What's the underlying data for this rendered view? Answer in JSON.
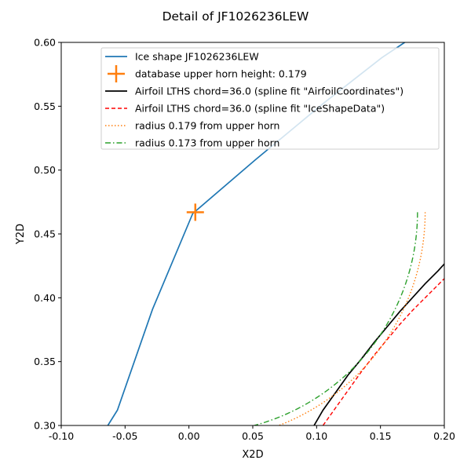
{
  "chart_data": {
    "type": "line",
    "title": "Detail of JF1026236LEW",
    "xlabel": "X2D",
    "ylabel": "Y2D",
    "xlim": [
      -0.1,
      0.2
    ],
    "ylim": [
      0.3,
      0.6
    ],
    "x_ticks": [
      "-0.10",
      "-0.05",
      "0.00",
      "0.05",
      "0.10",
      "0.15",
      "0.20"
    ],
    "y_ticks": [
      "0.30",
      "0.35",
      "0.40",
      "0.45",
      "0.50",
      "0.55",
      "0.60"
    ],
    "grid": false,
    "legend_position": "upper-right",
    "series": [
      {
        "name": "Ice shape JF1026236LEW",
        "style": "solid",
        "color": "#1f77b4",
        "x": [
          -0.0635,
          -0.056,
          -0.0285,
          0.003,
          0.052,
          0.105,
          0.151,
          0.172
        ],
        "y": [
          0.3,
          0.312,
          0.391,
          0.466,
          0.508,
          0.552,
          0.588,
          0.602
        ]
      },
      {
        "name": "database upper horn height: 0.179",
        "style": "marker",
        "marker": "plus",
        "color": "#ff7f0e",
        "x": [
          0.005
        ],
        "y": [
          0.467
        ]
      },
      {
        "name": "Airfoil LTHS chord=36.0 (spline fit \"AirfoilCoordinates\")",
        "style": "solid",
        "color": "#000000",
        "x": [
          0.098,
          0.105,
          0.115,
          0.125,
          0.135,
          0.145,
          0.155,
          0.165,
          0.175,
          0.185,
          0.195,
          0.205
        ],
        "y": [
          0.3,
          0.312,
          0.326,
          0.34,
          0.352,
          0.365,
          0.377,
          0.389,
          0.4,
          0.411,
          0.421,
          0.432
        ]
      },
      {
        "name": "Airfoil LTHS chord=36.0 (spline fit \"IceShapeData\")",
        "style": "dashed",
        "color": "#ff0000",
        "x": [
          0.105,
          0.115,
          0.125,
          0.135,
          0.145,
          0.155,
          0.165,
          0.175,
          0.185,
          0.195,
          0.205
        ],
        "y": [
          0.3,
          0.314,
          0.328,
          0.342,
          0.355,
          0.367,
          0.379,
          0.39,
          0.4,
          0.41,
          0.42
        ]
      },
      {
        "name": "radius 0.179 from upper horn",
        "style": "dotted",
        "color": "#ff7f0e",
        "center": [
          0.006,
          0.467
        ],
        "radius": 0.179,
        "angle_range_deg": [
          -90,
          0
        ]
      },
      {
        "name": "radius 0.173 from upper horn",
        "style": "dashdot",
        "color": "#2ca02c",
        "center": [
          0.006,
          0.467
        ],
        "radius": 0.173,
        "angle_range_deg": [
          -90,
          0
        ]
      }
    ]
  }
}
